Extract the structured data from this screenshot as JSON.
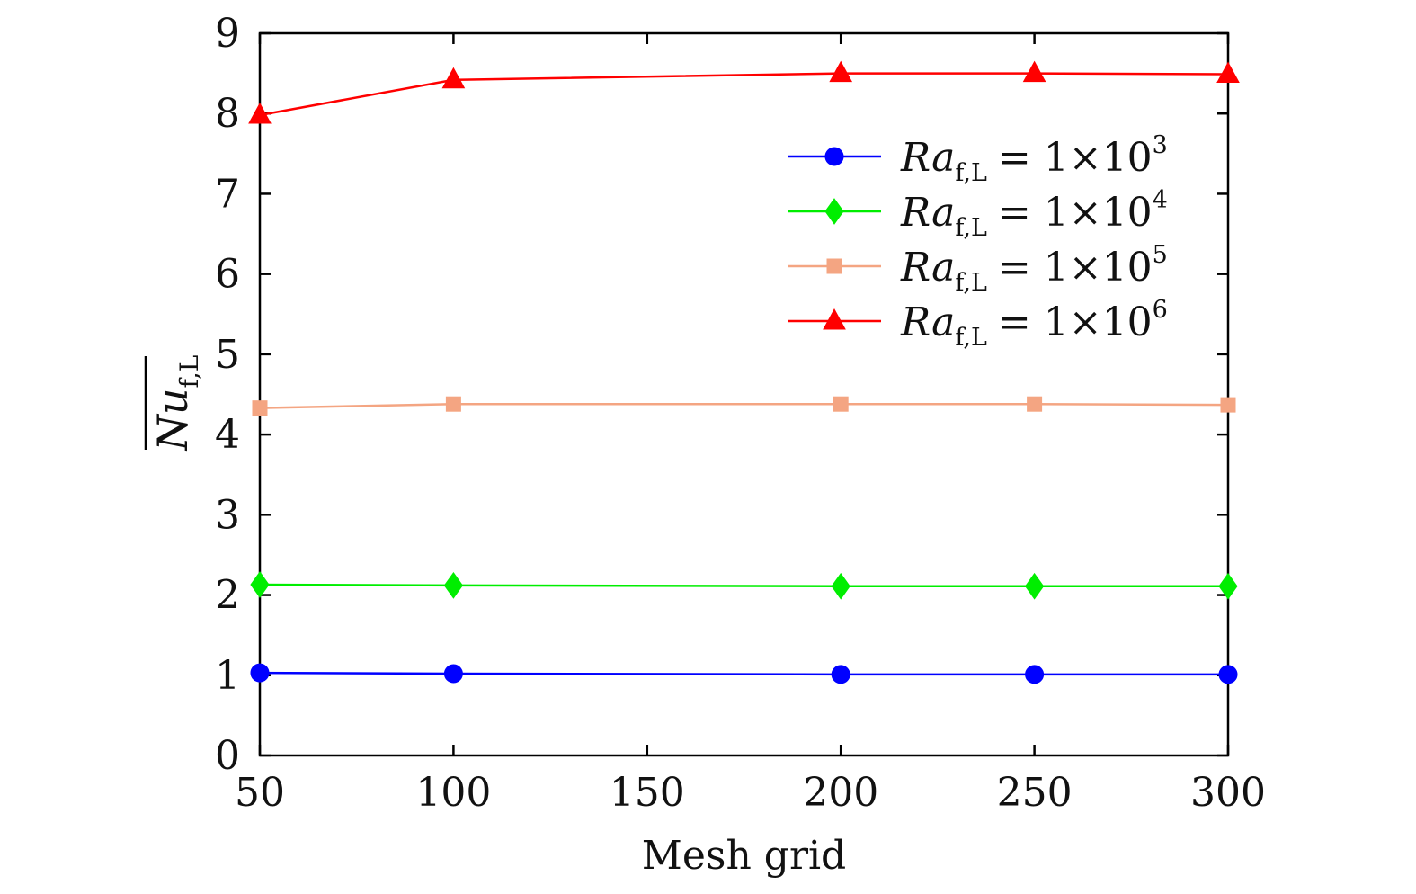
{
  "chart_data": {
    "type": "line",
    "title": "",
    "xlabel": "Mesh grid",
    "ylabel_parts": {
      "base": "Nu",
      "sub": "f,L",
      "overline": true
    },
    "x": [
      50,
      100,
      200,
      250,
      300
    ],
    "xlim": [
      50,
      300
    ],
    "ylim": [
      0,
      9
    ],
    "xticks": [
      50,
      100,
      150,
      200,
      250,
      300
    ],
    "yticks": [
      0,
      1,
      2,
      3,
      4,
      5,
      6,
      7,
      8,
      9
    ],
    "grid": false,
    "legend_position": "top-right",
    "series": [
      {
        "name": "Ra_f,L = 1×10^3",
        "label": {
          "base": "Ra",
          "sub": "f,L",
          "eq": "= 1×10",
          "exp": "3"
        },
        "marker": "circle",
        "color": "#0000ff",
        "values": [
          1.03,
          1.02,
          1.01,
          1.01,
          1.01
        ]
      },
      {
        "name": "Ra_f,L = 1×10^4",
        "label": {
          "base": "Ra",
          "sub": "f,L",
          "eq": "= 1×10",
          "exp": "4"
        },
        "marker": "diamond",
        "color": "#00ee00",
        "values": [
          2.13,
          2.12,
          2.11,
          2.11,
          2.11
        ]
      },
      {
        "name": "Ra_f,L = 1×10^5",
        "label": {
          "base": "Ra",
          "sub": "f,L",
          "eq": "= 1×10",
          "exp": "5"
        },
        "marker": "square",
        "color": "#f4a582",
        "values": [
          4.33,
          4.38,
          4.38,
          4.38,
          4.37
        ]
      },
      {
        "name": "Ra_f,L = 1×10^6",
        "label": {
          "base": "Ra",
          "sub": "f,L",
          "eq": "= 1×10",
          "exp": "6"
        },
        "marker": "triangle",
        "color": "#ff0000",
        "values": [
          7.98,
          8.42,
          8.5,
          8.5,
          8.49
        ]
      }
    ]
  }
}
